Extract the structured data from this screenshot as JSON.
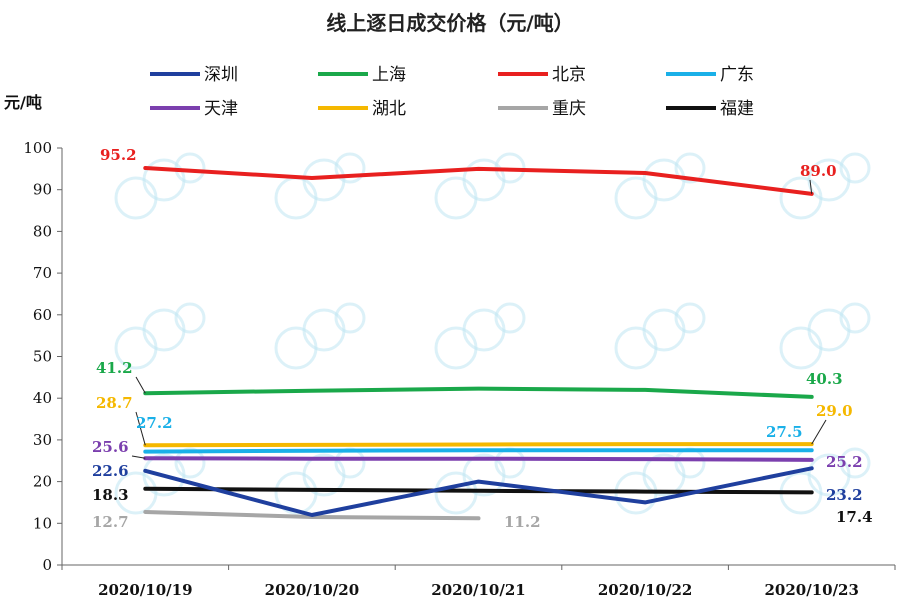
{
  "chart_data": {
    "type": "line",
    "title": "线上逐日成交价格（元/吨）",
    "ylabel": "元/吨",
    "xlabel": "",
    "ylim": [
      0,
      100
    ],
    "yticks": [
      0,
      10,
      20,
      30,
      40,
      50,
      60,
      70,
      80,
      90,
      100
    ],
    "categories": [
      "2020/10/19",
      "2020/10/20",
      "2020/10/21",
      "2020/10/22",
      "2020/10/23"
    ],
    "legend_position": "top",
    "series": [
      {
        "name": "深圳",
        "color": "#1f3f9e",
        "values": [
          22.6,
          12.0,
          20.0,
          15.0,
          23.2
        ],
        "first_label": "22.6",
        "last_label": "23.2"
      },
      {
        "name": "上海",
        "color": "#1aa84a",
        "values": [
          41.2,
          41.8,
          42.3,
          42.0,
          40.3
        ],
        "first_label": "41.2",
        "last_label": "40.3"
      },
      {
        "name": "北京",
        "color": "#e8201f",
        "values": [
          95.2,
          92.8,
          95.0,
          94.0,
          89.0
        ],
        "first_label": "95.2",
        "last_label": "89.0"
      },
      {
        "name": "广东",
        "color": "#1ab0e8",
        "values": [
          27.2,
          27.4,
          27.5,
          27.5,
          27.5
        ],
        "first_label": "27.2",
        "last_label": "27.5"
      },
      {
        "name": "天津",
        "color": "#7b3fae",
        "values": [
          25.6,
          25.5,
          25.5,
          25.4,
          25.2
        ],
        "first_label": "25.6",
        "last_label": "25.2"
      },
      {
        "name": "湖北",
        "color": "#f5b800",
        "values": [
          28.7,
          28.8,
          28.9,
          29.0,
          29.0
        ],
        "first_label": "28.7",
        "last_label": "29.0"
      },
      {
        "name": "重庆",
        "color": "#a6a6a6",
        "values": [
          12.7,
          11.5,
          11.2,
          null,
          null
        ],
        "first_label": "12.7",
        "last_label": "11.2"
      },
      {
        "name": "福建",
        "color": "#111111",
        "values": [
          18.3,
          18.0,
          17.8,
          17.6,
          17.4
        ],
        "first_label": "18.3",
        "last_label": "17.4"
      }
    ]
  }
}
